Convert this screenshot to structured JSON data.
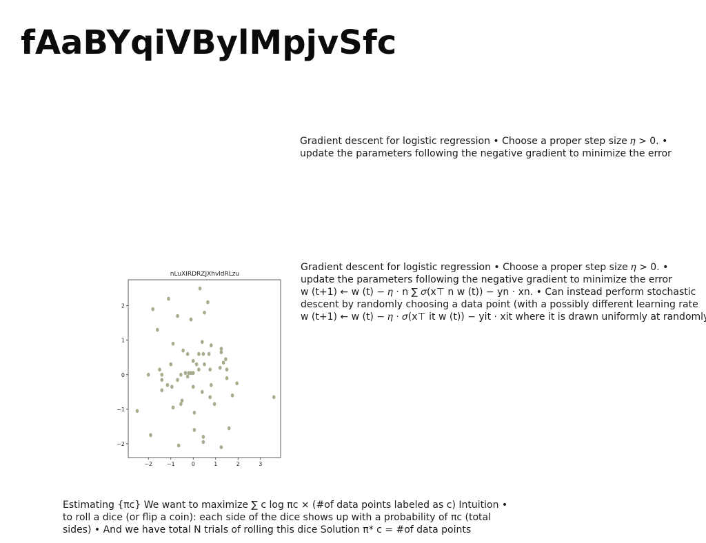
{
  "slide": {
    "title": "fAaBYqiVBylMpjvSfc",
    "text_block_1": {
      "lines": [
        "Gradient descent for logistic regression • Choose a proper step size 𝜂 > 0. •",
        "update the parameters following the negative gradient to minimize the error"
      ]
    },
    "text_block_2": {
      "lines": [
        "Gradient descent for logistic regression • Choose a proper step size 𝜂 > 0. •",
        "update the parameters following the negative gradient to minimize the error",
        "w (t+1) ← w (t) − 𝜂 ⋅ n ∑ 𝜎(x⊤ n w (t)) − yn ⋅ xn. • Can instead perform stochastic",
        "descent by randomly choosing a data point (with a possibly different learning rate",
        "w (t+1) ← w (t) − 𝜂 ⋅ 𝜎(x⊤ it w (t)) − yit ⋅ xit where it is drawn uniformly at randomly"
      ]
    },
    "text_block_3": {
      "lines": [
        "Estimating {πc} We want to maximize ∑ c log πc × (#of data points labeled as c) Intuition •",
        "to roll a dice (or flip a coin): each side of the dice shows up with a probability of πc (total",
        "sides) • And we have total N trials of rolling this dice Solution π* c = #of data points"
      ]
    }
  },
  "chart_data": {
    "type": "scatter",
    "title": "nLuXIRDRZJXhvldRLzu",
    "xlabel": "",
    "ylabel": "",
    "xlim": [
      -2.9,
      3.9
    ],
    "ylim": [
      -2.4,
      2.75
    ],
    "xticks": [
      -2,
      -1,
      0,
      1,
      2,
      3
    ],
    "yticks": [
      -2,
      -1,
      0,
      1,
      2
    ],
    "grid": false,
    "point_color": "#a8ab8c",
    "points": [
      [
        0.3,
        2.5
      ],
      [
        -1.1,
        2.2
      ],
      [
        0.65,
        2.1
      ],
      [
        -1.8,
        1.9
      ],
      [
        -0.7,
        1.7
      ],
      [
        0.5,
        1.8
      ],
      [
        -0.1,
        1.6
      ],
      [
        -1.6,
        1.3
      ],
      [
        -0.9,
        0.9
      ],
      [
        0.4,
        0.95
      ],
      [
        0.8,
        0.85
      ],
      [
        1.25,
        0.75
      ],
      [
        -0.45,
        0.7
      ],
      [
        1.25,
        0.65
      ],
      [
        -0.25,
        0.6
      ],
      [
        0.25,
        0.6
      ],
      [
        0.45,
        0.6
      ],
      [
        0.7,
        0.6
      ],
      [
        0.0,
        0.4
      ],
      [
        1.45,
        0.45
      ],
      [
        1.35,
        0.35
      ],
      [
        -1.0,
        0.3
      ],
      [
        0.15,
        0.3
      ],
      [
        0.5,
        0.3
      ],
      [
        -1.5,
        0.15
      ],
      [
        0.25,
        0.15
      ],
      [
        0.75,
        0.15
      ],
      [
        1.2,
        0.2
      ],
      [
        1.5,
        0.15
      ],
      [
        -0.35,
        0.05
      ],
      [
        -0.2,
        0.05
      ],
      [
        -0.1,
        0.05
      ],
      [
        0.0,
        0.05
      ],
      [
        -0.55,
        0.0
      ],
      [
        -0.25,
        -0.05
      ],
      [
        -2.0,
        0.0
      ],
      [
        -1.4,
        0.0
      ],
      [
        -1.4,
        -0.15
      ],
      [
        -0.7,
        -0.15
      ],
      [
        1.5,
        -0.1
      ],
      [
        -1.15,
        -0.3
      ],
      [
        -0.95,
        -0.35
      ],
      [
        0.0,
        -0.35
      ],
      [
        0.8,
        -0.3
      ],
      [
        1.95,
        -0.25
      ],
      [
        -1.4,
        -0.45
      ],
      [
        0.4,
        -0.5
      ],
      [
        1.75,
        -0.6
      ],
      [
        0.75,
        -0.65
      ],
      [
        -0.5,
        -0.75
      ],
      [
        -0.55,
        -0.85
      ],
      [
        0.95,
        -0.85
      ],
      [
        -0.9,
        -0.95
      ],
      [
        3.6,
        -0.65
      ],
      [
        -2.5,
        -1.05
      ],
      [
        0.05,
        -1.1
      ],
      [
        0.05,
        -1.6
      ],
      [
        1.6,
        -1.55
      ],
      [
        -1.9,
        -1.75
      ],
      [
        0.45,
        -1.8
      ],
      [
        0.45,
        -1.95
      ],
      [
        -0.65,
        -2.05
      ],
      [
        1.25,
        -2.1
      ]
    ]
  }
}
